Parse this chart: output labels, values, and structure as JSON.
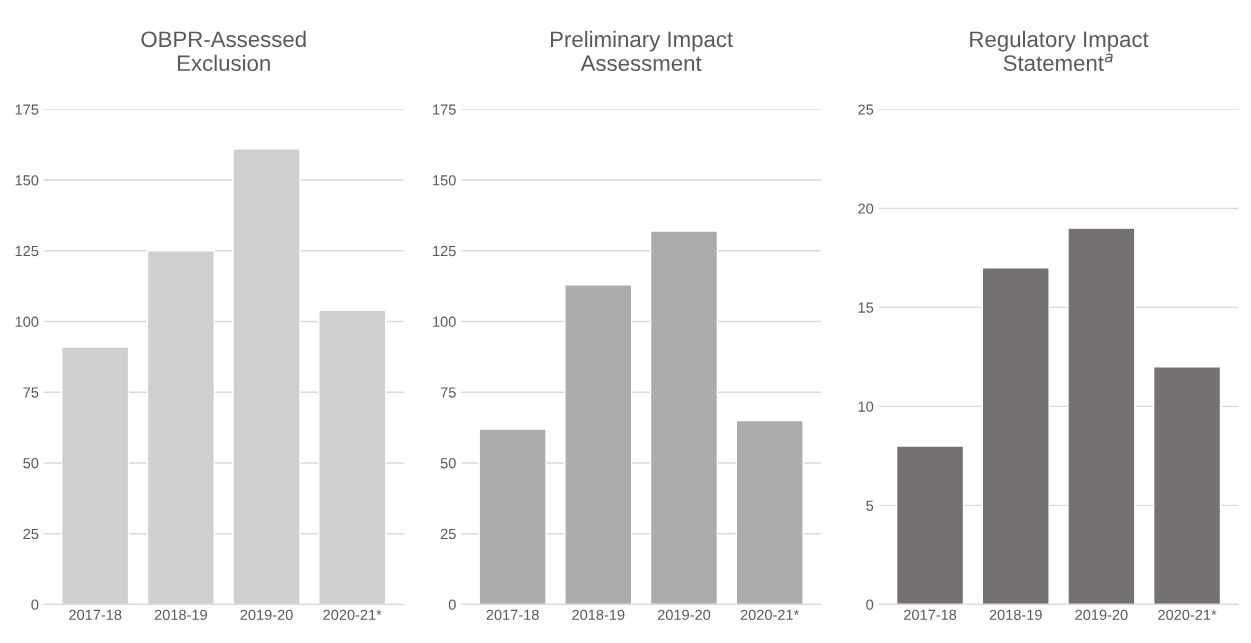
{
  "chart_data": [
    {
      "type": "bar",
      "title": "OBPR-Assessed Exclusion",
      "categories": [
        "2017-18",
        "2018-19",
        "2019-20",
        "2020-21*"
      ],
      "values": [
        91,
        125,
        161,
        104
      ],
      "color": "#d0cfcf",
      "ylim": [
        0,
        175
      ],
      "yticks": [
        0,
        25,
        50,
        75,
        100,
        125,
        150,
        175
      ],
      "grid": "y"
    },
    {
      "type": "bar",
      "title": "Preliminary Impact Assessment",
      "categories": [
        "2017-18",
        "2018-19",
        "2019-20",
        "2020-21*"
      ],
      "values": [
        62,
        113,
        132,
        65
      ],
      "color": "#aeabab",
      "ylim": [
        0,
        175
      ],
      "yticks": [
        0,
        25,
        50,
        75,
        100,
        125,
        150,
        175
      ],
      "grid": "y"
    },
    {
      "type": "bar",
      "title": "Regulatory Impact Statement$^{a}$",
      "categories": [
        "2017-18",
        "2018-19",
        "2019-20",
        "2020-21*"
      ],
      "values": [
        8,
        17,
        19,
        12
      ],
      "color": "#767171",
      "ylim": [
        0,
        25
      ],
      "yticks": [
        0,
        5,
        10,
        15,
        20,
        25
      ],
      "grid": "y"
    }
  ]
}
